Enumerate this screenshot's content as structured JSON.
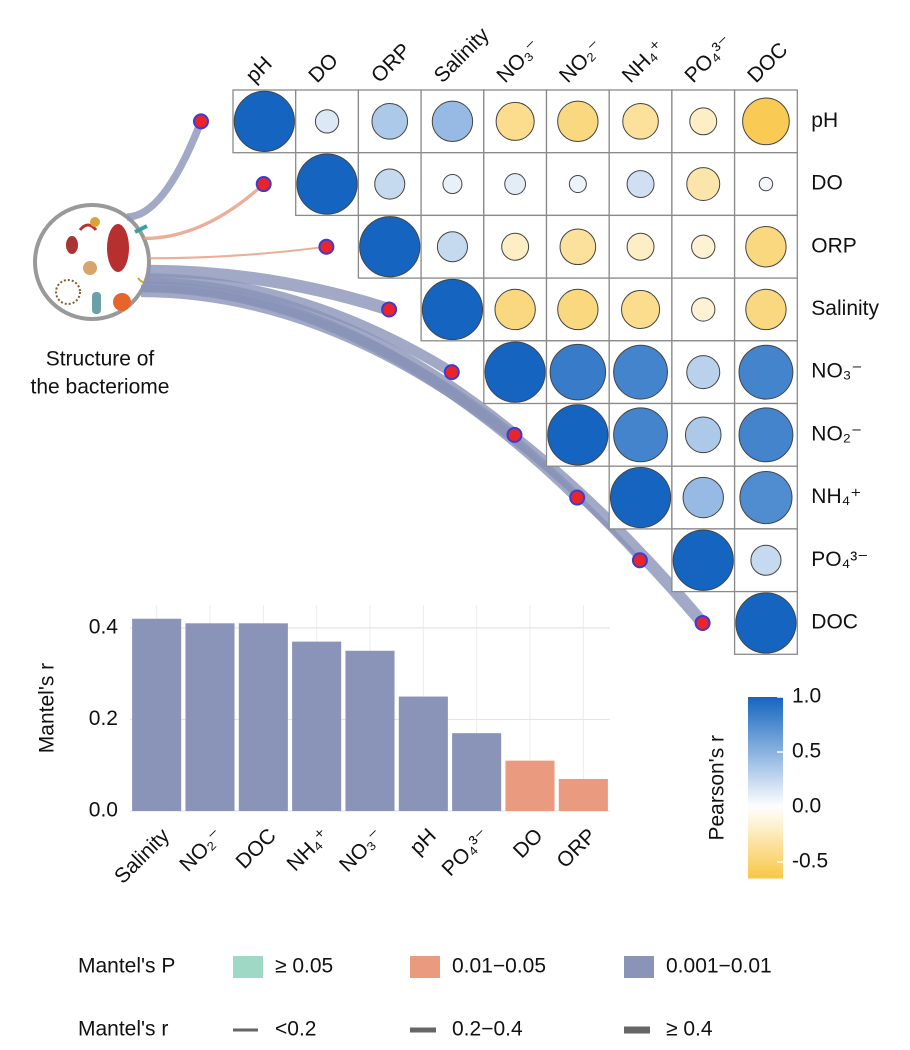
{
  "chart_data": [
    {
      "type": "corrplot",
      "variables": [
        "pH",
        "DO",
        "ORP",
        "Salinity",
        "NO₃⁻",
        "NO₂⁻",
        "NH₄⁺",
        "PO₄³⁻",
        "DOC"
      ],
      "matrix": [
        [
          1,
          0.15,
          0.35,
          0.45,
          -0.4,
          -0.45,
          -0.35,
          -0.2,
          -0.6
        ],
        [
          1,
          0.25,
          0.1,
          0.12,
          0.08,
          0.2,
          -0.3,
          0.05
        ],
        [
          1,
          0.25,
          -0.2,
          -0.35,
          -0.2,
          -0.15,
          -0.45
        ],
        [
          1,
          -0.45,
          -0.45,
          -0.4,
          -0.15,
          -0.45
        ],
        [
          1,
          0.85,
          0.8,
          0.3,
          0.8
        ],
        [
          1,
          0.8,
          0.35,
          0.8
        ],
        [
          1,
          0.45,
          0.75
        ],
        [
          1,
          0.25
        ],
        [
          1
        ]
      ],
      "colorbar": {
        "title": "Pearson's r",
        "lim": [
          -0.65,
          1.0
        ],
        "ticks": [
          {
            "value": 1,
            "label": "1.0"
          },
          0.5,
          {
            "value": 0,
            "label": "0.0"
          },
          -0.5
        ],
        "colors": [
          "#f8c746",
          "#ffffff",
          "#1565c0"
        ]
      }
    },
    {
      "type": "node",
      "label": [
        "Structure of",
        "the bacteriome"
      ]
    },
    {
      "type": "bar",
      "ylabel": "Mantel's r",
      "categories": [
        "Salinity",
        "NO₂⁻",
        "DOC",
        "NH₄⁺",
        "NO₃⁻",
        "pH",
        "PO₄³⁻",
        "DO",
        "ORP"
      ],
      "values": [
        0.42,
        0.41,
        0.41,
        0.37,
        0.35,
        0.25,
        0.17,
        0.11,
        0.07
      ],
      "p_class": [
        2,
        2,
        2,
        2,
        2,
        2,
        2,
        1,
        1
      ],
      "ylim": [
        0,
        0.45
      ],
      "yticks": [
        {
          "value": 0,
          "label": "0.0"
        },
        0.2,
        0.4
      ],
      "grid": true,
      "legends": {
        "p": {
          "title": "Mantel's P",
          "items": [
            {
              "label": "≥ 0.05",
              "color": "#9fd8c4"
            },
            {
              "label": "0.01−0.05",
              "color": "#e99a7f"
            },
            {
              "label": "0.001−0.01",
              "color": "#8a93b8"
            }
          ]
        },
        "r": {
          "title": "Mantel's r",
          "items": [
            "<0.2",
            "0.2−0.4",
            "≥ 0.4"
          ]
        }
      }
    }
  ]
}
